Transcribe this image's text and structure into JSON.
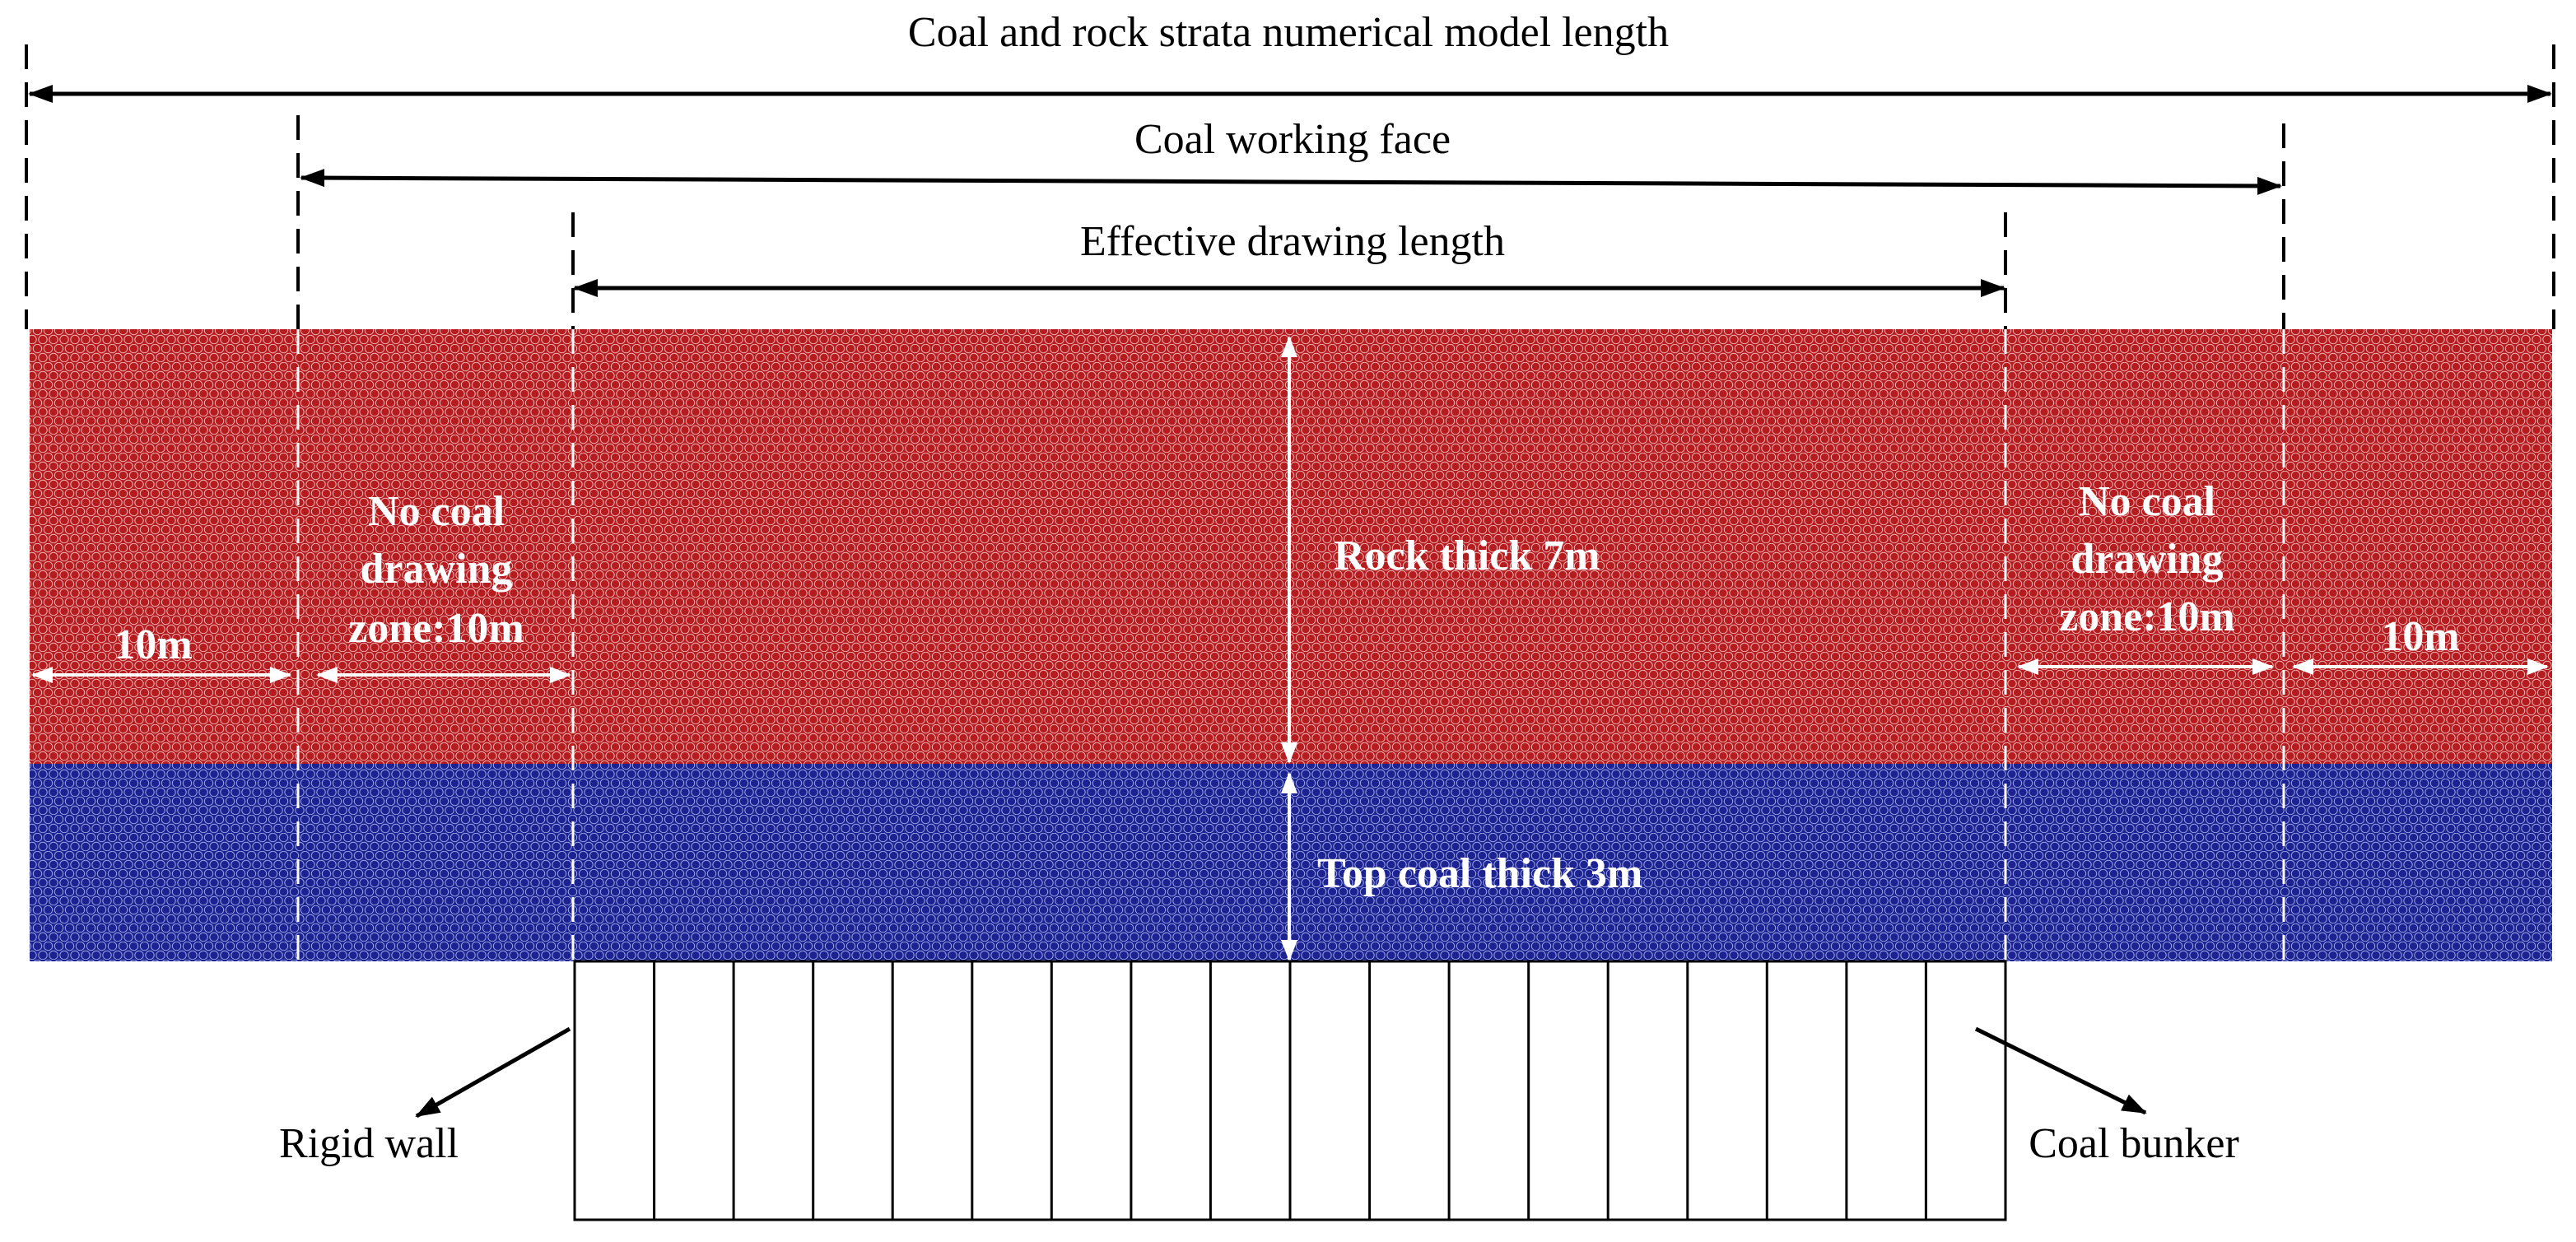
{
  "title": "Coal and rock strata numerical model length",
  "labels": {
    "working_face": "Coal working face",
    "effective_length": "Effective drawing length",
    "rock_thickness": "Rock thick 7m",
    "top_coal_thickness": "Top coal thick 3m",
    "left_zone": [
      "No coal",
      "drawing",
      "zone:10m"
    ],
    "right_zone": [
      "No coal",
      "drawing",
      "zone:10m"
    ],
    "left_margin": "10m",
    "right_margin": "10m",
    "rigid_wall": "Rigid wall",
    "coal_bunker": "Coal bunker"
  },
  "colors": {
    "rock_layer": "#b51c20",
    "coal_layer": "#1c2290"
  }
}
